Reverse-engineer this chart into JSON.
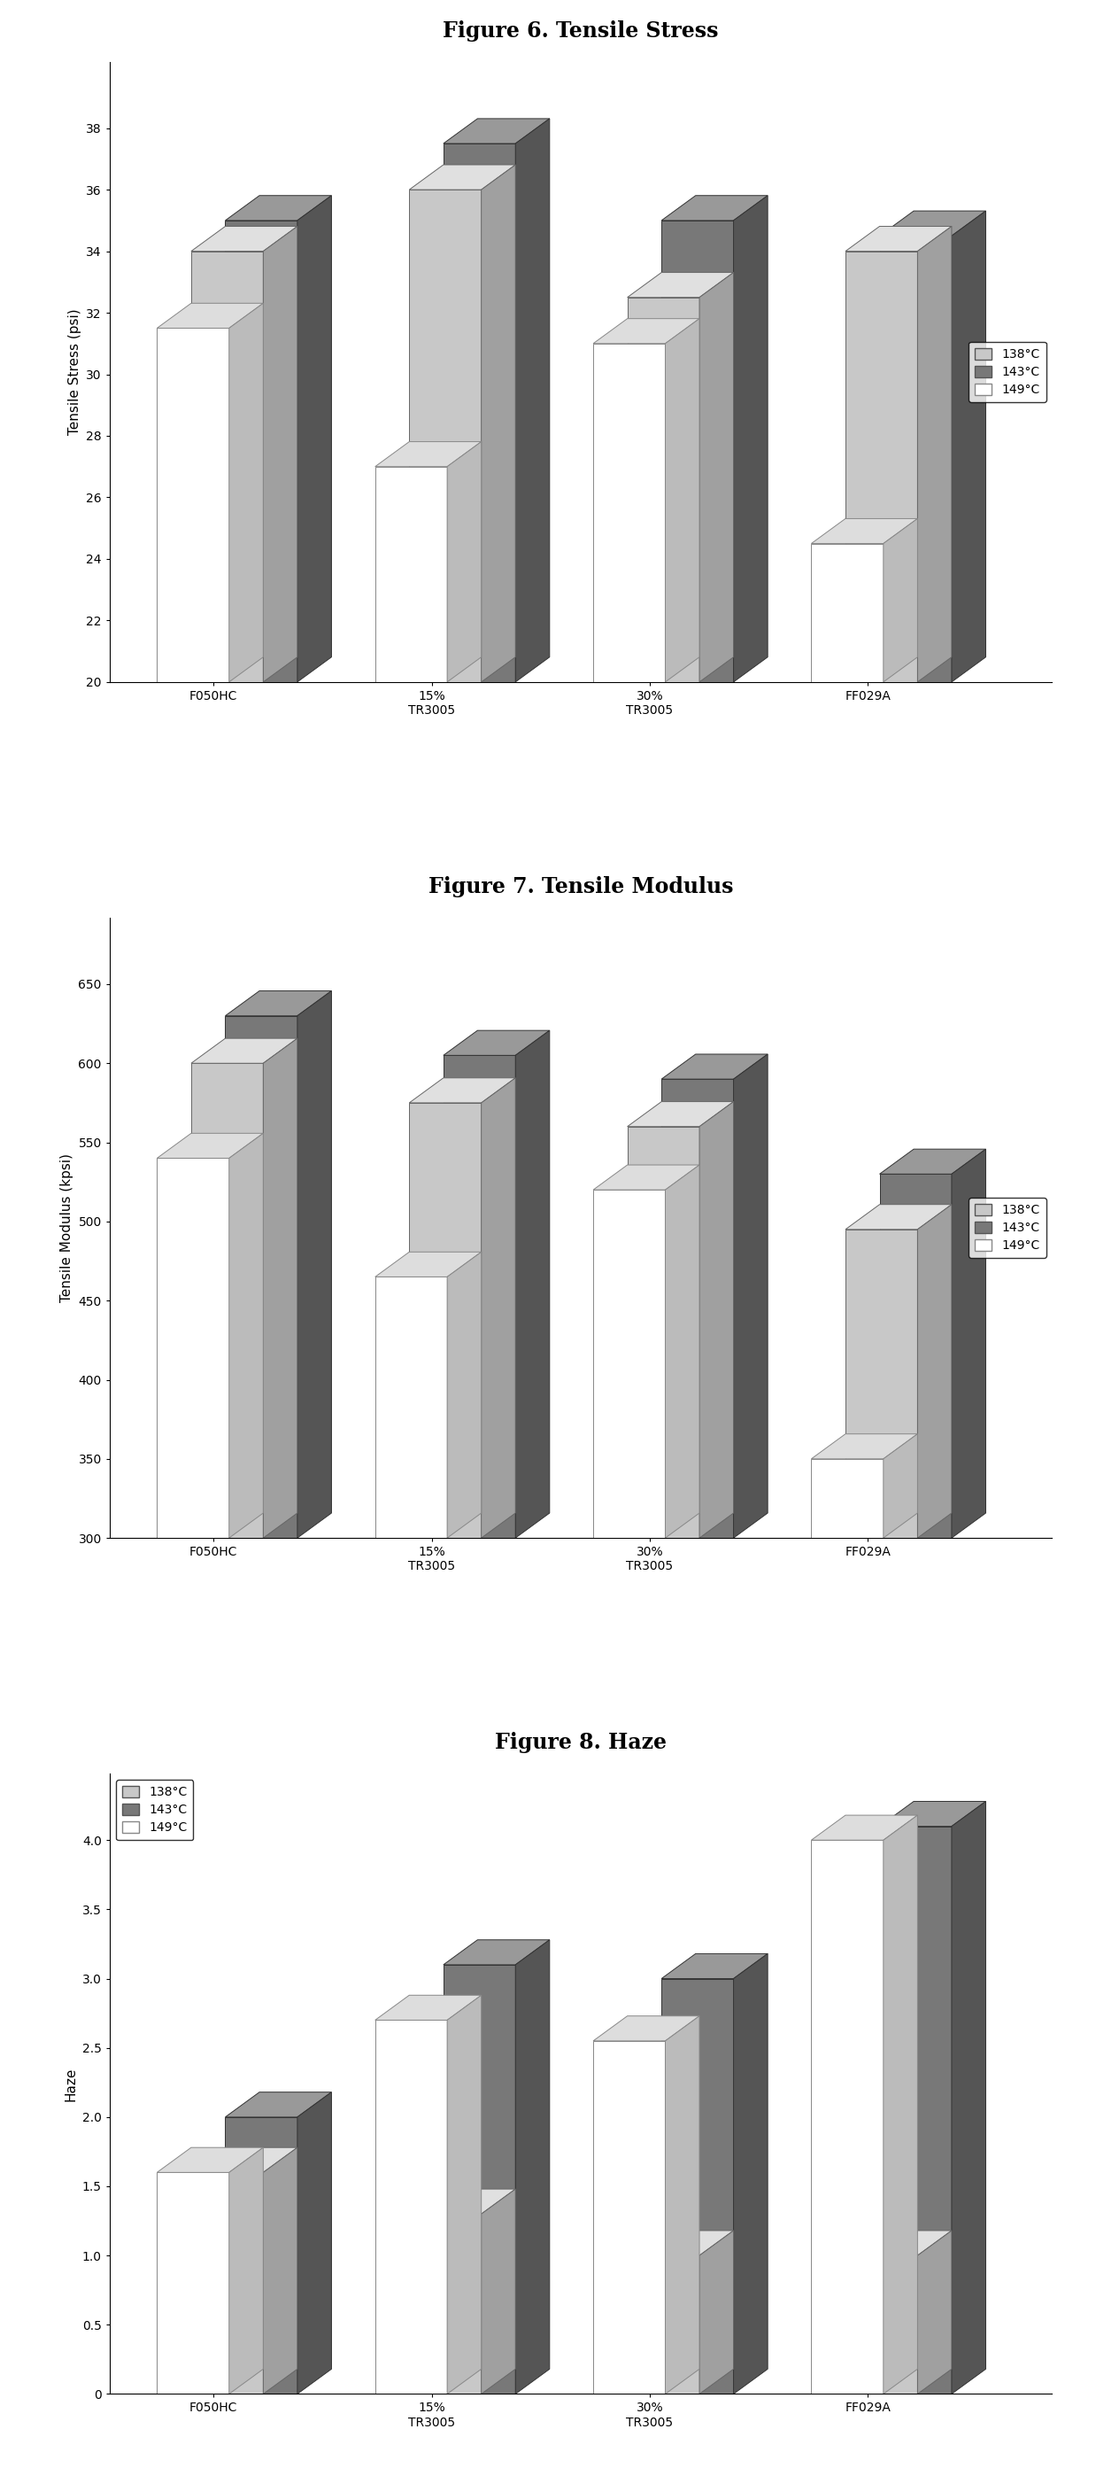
{
  "fig6": {
    "title": "Figure 6. Tensile Stress",
    "ylabel": "Tensile Stress (psi)",
    "ylim": [
      20,
      38
    ],
    "yticks": [
      20,
      22,
      24,
      26,
      28,
      30,
      32,
      34,
      36,
      38
    ],
    "categories": [
      "F050HC",
      "15%\nTR3005",
      "30%\nTR3005",
      "FF029A"
    ],
    "series": {
      "138°C": [
        34.0,
        36.0,
        32.5,
        34.0
      ],
      "143°C": [
        35.0,
        37.5,
        35.0,
        34.5
      ],
      "149°C": [
        31.5,
        27.0,
        31.0,
        24.5
      ]
    },
    "colors": {
      "138°C": "#c8c8c8",
      "143°C": "#787878",
      "149°C": "#ffffff"
    },
    "legend_loc": "center right"
  },
  "fig7": {
    "title": "Figure 7. Tensile Modulus",
    "ylabel": "Tensile Modulus (kpsi)",
    "ylim": [
      300,
      650
    ],
    "yticks": [
      300,
      350,
      400,
      450,
      500,
      550,
      600,
      650
    ],
    "categories": [
      "F050HC",
      "15%\nTR3005",
      "30%\nTR3005",
      "FF029A"
    ],
    "series": {
      "138°C": [
        600.0,
        575.0,
        560.0,
        495.0
      ],
      "143°C": [
        630.0,
        605.0,
        590.0,
        530.0
      ],
      "149°C": [
        540.0,
        465.0,
        520.0,
        350.0
      ]
    },
    "colors": {
      "138°C": "#c8c8c8",
      "143°C": "#787878",
      "149°C": "#ffffff"
    },
    "legend_loc": "center right"
  },
  "fig8": {
    "title": "Figure 8. Haze",
    "ylabel": "Haze",
    "ylim": [
      0,
      4
    ],
    "yticks": [
      0,
      0.5,
      1.0,
      1.5,
      2.0,
      2.5,
      3.0,
      3.5,
      4.0
    ],
    "categories": [
      "F050HC",
      "15%\nTR3005",
      "30%\nTR3005",
      "FF029A"
    ],
    "series": {
      "138°C": [
        1.6,
        1.3,
        1.0,
        1.0
      ],
      "143°C": [
        2.0,
        3.1,
        3.0,
        4.1
      ],
      "149°C": [
        1.6,
        2.7,
        2.55,
        4.0
      ]
    },
    "colors": {
      "138°C": "#c8c8c8",
      "143°C": "#787878",
      "149°C": "#ffffff"
    },
    "legend_loc": "upper left"
  },
  "legend_labels": [
    "138°C",
    "143°C",
    "149°C"
  ],
  "series_order_back_to_front": [
    "143°C",
    "138°C",
    "149°C"
  ]
}
